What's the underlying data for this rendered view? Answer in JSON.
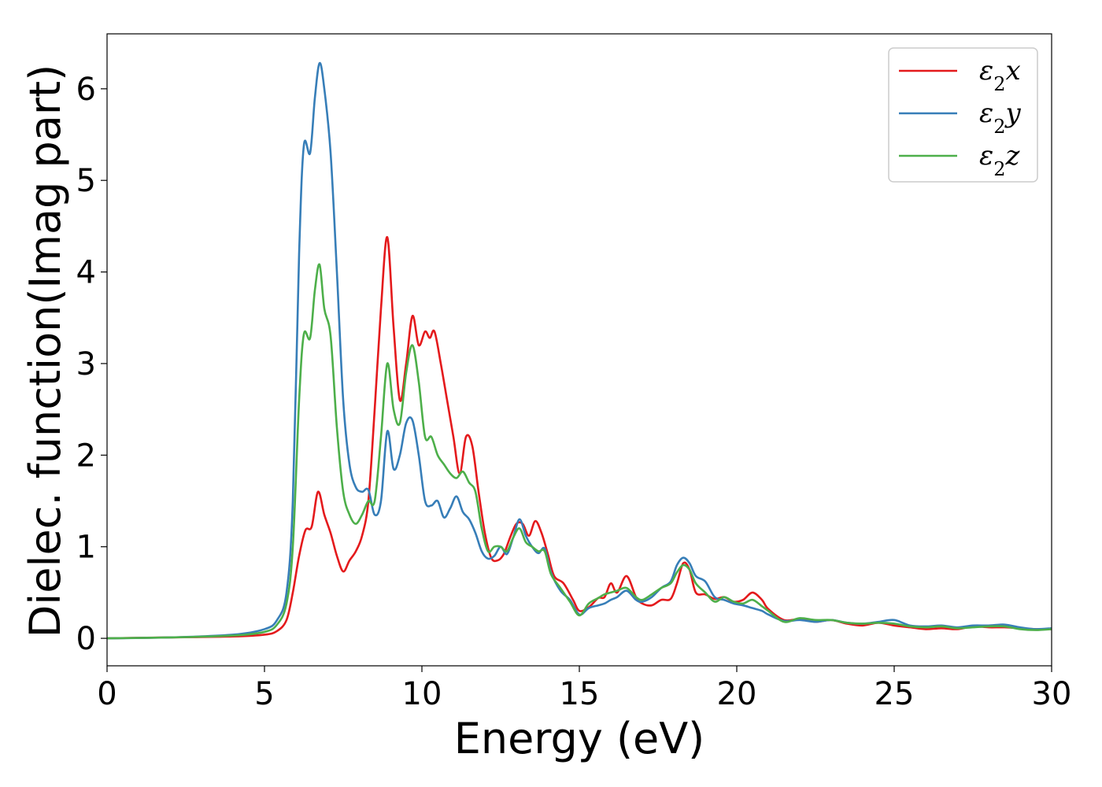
{
  "chart_data": {
    "type": "line",
    "xlabel": "Energy (eV)",
    "ylabel": "Dielec. function(Imag part)",
    "xlim": [
      0,
      30
    ],
    "ylim": [
      -0.3,
      6.6
    ],
    "xticks": [
      0,
      5,
      10,
      15,
      20,
      25,
      30
    ],
    "yticks": [
      0,
      1,
      2,
      3,
      4,
      5,
      6
    ],
    "grid": false,
    "legend_position": "top-right",
    "series": [
      {
        "name": "ε₂x",
        "legend_base": "ε",
        "legend_sub": "2",
        "legend_suffix": "x",
        "color": "#e41a1c",
        "x": [
          0,
          2,
          4,
          5,
          5.4,
          5.7,
          5.9,
          6.1,
          6.3,
          6.5,
          6.7,
          6.9,
          7.1,
          7.3,
          7.5,
          7.7,
          7.9,
          8.1,
          8.3,
          8.5,
          8.7,
          8.9,
          9.1,
          9.3,
          9.5,
          9.7,
          9.9,
          10.1,
          10.25,
          10.4,
          10.6,
          10.8,
          11.0,
          11.2,
          11.4,
          11.6,
          11.8,
          12.0,
          12.2,
          12.4,
          12.6,
          12.8,
          13.0,
          13.2,
          13.4,
          13.6,
          13.8,
          14.0,
          14.2,
          14.5,
          14.8,
          15.0,
          15.3,
          15.6,
          15.8,
          16.0,
          16.2,
          16.5,
          16.8,
          17.0,
          17.3,
          17.6,
          17.9,
          18.1,
          18.3,
          18.5,
          18.7,
          19.0,
          19.3,
          19.6,
          19.9,
          20.2,
          20.5,
          20.8,
          21.0,
          21.5,
          22,
          22.5,
          23,
          23.5,
          24,
          24.5,
          25,
          25.5,
          26,
          26.5,
          27,
          27.5,
          28,
          28.5,
          29,
          29.5,
          30
        ],
        "y": [
          0,
          0.01,
          0.02,
          0.04,
          0.08,
          0.2,
          0.5,
          0.9,
          1.18,
          1.22,
          1.6,
          1.35,
          1.15,
          0.9,
          0.73,
          0.85,
          0.95,
          1.12,
          1.5,
          2.5,
          3.6,
          4.38,
          3.4,
          2.6,
          3.0,
          3.52,
          3.2,
          3.35,
          3.28,
          3.35,
          3.0,
          2.6,
          2.2,
          1.8,
          2.2,
          2.1,
          1.6,
          1.15,
          0.88,
          0.85,
          0.92,
          1.1,
          1.25,
          1.25,
          1.12,
          1.28,
          1.15,
          0.92,
          0.68,
          0.6,
          0.42,
          0.3,
          0.34,
          0.44,
          0.45,
          0.6,
          0.5,
          0.68,
          0.45,
          0.38,
          0.36,
          0.42,
          0.43,
          0.6,
          0.82,
          0.75,
          0.5,
          0.48,
          0.43,
          0.45,
          0.4,
          0.42,
          0.5,
          0.42,
          0.32,
          0.2,
          0.21,
          0.18,
          0.2,
          0.16,
          0.14,
          0.17,
          0.14,
          0.12,
          0.1,
          0.11,
          0.1,
          0.13,
          0.12,
          0.12,
          0.11,
          0.1,
          0.1
        ]
      },
      {
        "name": "ε₂y",
        "legend_base": "ε",
        "legend_sub": "2",
        "legend_suffix": "y",
        "color": "#377eb8",
        "x": [
          0,
          2,
          4,
          5,
          5.4,
          5.7,
          5.9,
          6.1,
          6.25,
          6.45,
          6.6,
          6.75,
          6.9,
          7.1,
          7.3,
          7.5,
          7.7,
          7.9,
          8.1,
          8.3,
          8.5,
          8.7,
          8.9,
          9.1,
          9.3,
          9.5,
          9.7,
          9.9,
          10.1,
          10.3,
          10.5,
          10.7,
          10.9,
          11.1,
          11.3,
          11.5,
          11.7,
          11.9,
          12.1,
          12.3,
          12.5,
          12.7,
          12.9,
          13.1,
          13.3,
          13.5,
          13.7,
          13.9,
          14.1,
          14.4,
          14.7,
          15.0,
          15.3,
          15.6,
          15.8,
          16.0,
          16.2,
          16.5,
          16.8,
          17.0,
          17.3,
          17.6,
          17.9,
          18.1,
          18.3,
          18.5,
          18.7,
          19.0,
          19.3,
          19.6,
          19.9,
          20.2,
          20.5,
          20.8,
          21.0,
          21.5,
          22,
          22.5,
          23,
          23.5,
          24,
          24.5,
          25,
          25.5,
          26,
          26.5,
          27,
          27.5,
          28,
          28.5,
          29,
          29.5,
          30
        ],
        "y": [
          0,
          0.01,
          0.04,
          0.1,
          0.2,
          0.5,
          1.5,
          4.2,
          5.38,
          5.3,
          5.9,
          6.28,
          6.0,
          5.3,
          4.0,
          2.6,
          1.9,
          1.65,
          1.6,
          1.62,
          1.35,
          1.5,
          2.26,
          1.85,
          2.0,
          2.35,
          2.38,
          2.0,
          1.5,
          1.45,
          1.5,
          1.32,
          1.42,
          1.55,
          1.38,
          1.3,
          1.15,
          0.95,
          0.87,
          0.9,
          1.0,
          0.92,
          1.1,
          1.3,
          1.12,
          1.0,
          0.93,
          0.98,
          0.72,
          0.52,
          0.42,
          0.26,
          0.33,
          0.36,
          0.38,
          0.42,
          0.45,
          0.52,
          0.42,
          0.4,
          0.45,
          0.55,
          0.62,
          0.8,
          0.88,
          0.82,
          0.68,
          0.62,
          0.45,
          0.42,
          0.38,
          0.36,
          0.33,
          0.3,
          0.26,
          0.19,
          0.2,
          0.18,
          0.2,
          0.17,
          0.16,
          0.18,
          0.2,
          0.14,
          0.13,
          0.14,
          0.12,
          0.14,
          0.14,
          0.15,
          0.12,
          0.1,
          0.11
        ]
      },
      {
        "name": "ε₂z",
        "legend_base": "ε",
        "legend_sub": "2",
        "legend_suffix": "z",
        "color": "#4daf4a",
        "x": [
          0,
          2,
          4,
          5,
          5.4,
          5.7,
          5.9,
          6.1,
          6.25,
          6.45,
          6.6,
          6.75,
          6.9,
          7.1,
          7.3,
          7.5,
          7.7,
          7.9,
          8.1,
          8.3,
          8.5,
          8.7,
          8.9,
          9.1,
          9.3,
          9.5,
          9.7,
          9.9,
          10.1,
          10.3,
          10.5,
          10.7,
          10.9,
          11.1,
          11.3,
          11.5,
          11.7,
          11.9,
          12.1,
          12.3,
          12.5,
          12.7,
          12.9,
          13.1,
          13.3,
          13.5,
          13.7,
          13.9,
          14.1,
          14.4,
          14.7,
          15.0,
          15.3,
          15.6,
          15.8,
          16.0,
          16.2,
          16.5,
          16.8,
          17.0,
          17.3,
          17.6,
          17.9,
          18.1,
          18.3,
          18.5,
          18.7,
          19.0,
          19.3,
          19.6,
          19.9,
          20.2,
          20.5,
          20.8,
          21.0,
          21.5,
          22,
          22.5,
          23,
          23.5,
          24,
          24.5,
          25,
          25.5,
          26,
          26.5,
          27,
          27.5,
          28,
          28.5,
          29,
          29.5,
          30
        ],
        "y": [
          0,
          0.01,
          0.03,
          0.07,
          0.15,
          0.38,
          1.0,
          2.6,
          3.32,
          3.28,
          3.8,
          4.08,
          3.6,
          3.3,
          2.3,
          1.6,
          1.35,
          1.25,
          1.35,
          1.5,
          1.5,
          2.2,
          3.0,
          2.5,
          2.35,
          2.9,
          3.2,
          2.8,
          2.2,
          2.2,
          2.0,
          1.9,
          1.8,
          1.75,
          1.82,
          1.7,
          1.6,
          1.2,
          0.95,
          1.0,
          1.0,
          0.95,
          1.1,
          1.2,
          1.05,
          1.0,
          0.95,
          0.95,
          0.7,
          0.55,
          0.4,
          0.25,
          0.38,
          0.44,
          0.48,
          0.5,
          0.52,
          0.55,
          0.45,
          0.42,
          0.48,
          0.55,
          0.6,
          0.72,
          0.8,
          0.75,
          0.6,
          0.5,
          0.4,
          0.45,
          0.4,
          0.38,
          0.42,
          0.35,
          0.3,
          0.18,
          0.22,
          0.2,
          0.2,
          0.17,
          0.16,
          0.17,
          0.16,
          0.13,
          0.12,
          0.13,
          0.11,
          0.12,
          0.13,
          0.13,
          0.1,
          0.09,
          0.1
        ]
      }
    ]
  }
}
